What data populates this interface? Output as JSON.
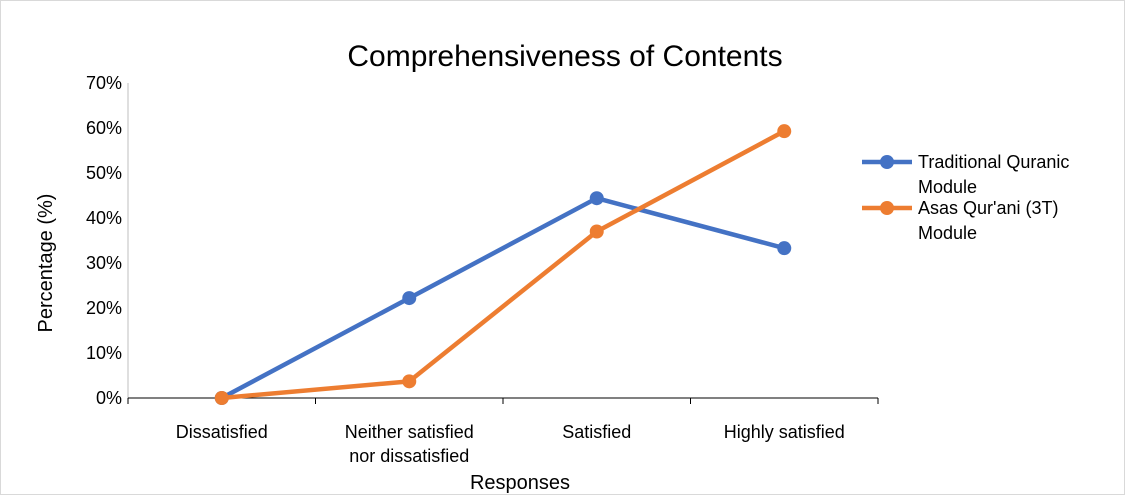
{
  "chart_data": {
    "type": "line",
    "title": "Comprehensiveness of Contents",
    "xlabel": "Responses",
    "ylabel": "Percentage (%)",
    "categories": [
      [
        "Dissatisfied"
      ],
      [
        "Neither satisfied",
        "nor dissatisfied"
      ],
      [
        "Satisfied"
      ],
      [
        "Highly satisfied"
      ]
    ],
    "ylim": [
      0,
      70
    ],
    "yticks": [
      "0%",
      "10%",
      "20%",
      "30%",
      "40%",
      "50%",
      "60%",
      "70%"
    ],
    "grid": false,
    "legend_position": "right",
    "series": [
      {
        "name_lines": [
          "Traditional Quranic",
          "Module"
        ],
        "color": "#4472C4",
        "values": [
          0,
          22.2,
          44.4,
          33.3
        ]
      },
      {
        "name_lines": [
          "Asas Qur'ani (3T)",
          "Module"
        ],
        "color": "#ED7D31",
        "values": [
          0,
          3.7,
          37.0,
          59.3
        ]
      }
    ]
  }
}
